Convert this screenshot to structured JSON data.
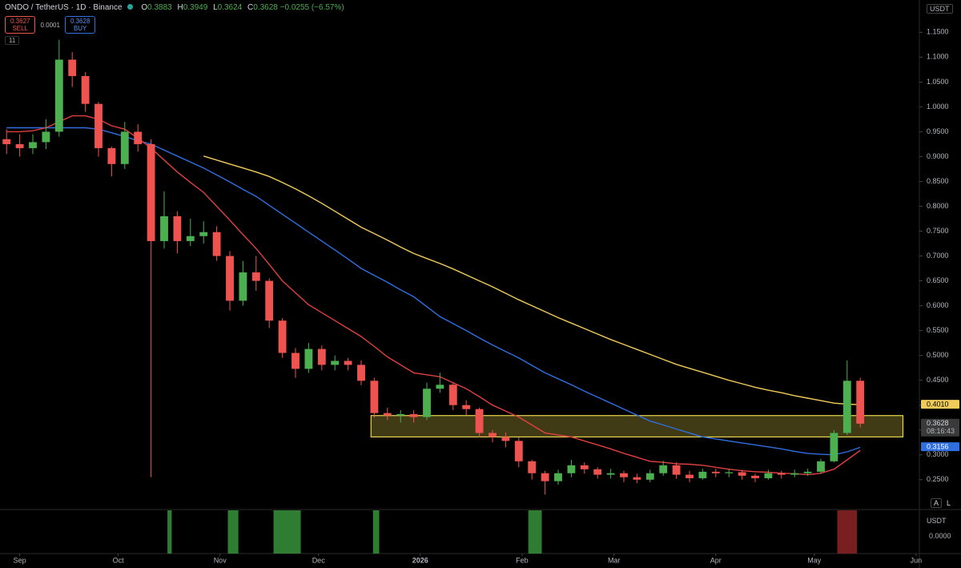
{
  "header": {
    "symbol": "ONDO / TetherUS · 1D · Binance",
    "ohlc": [
      {
        "k": "O",
        "v": "0.3883"
      },
      {
        "k": "H",
        "v": "0.3949"
      },
      {
        "k": "L",
        "v": "0.3624"
      },
      {
        "k": "C",
        "v": "0.3628"
      }
    ],
    "change": "−0.0255 (−6.57%)",
    "sell": {
      "price": "0.3627",
      "label": "SELL"
    },
    "spread": "0.0001",
    "buy": {
      "price": "0.3628",
      "label": "BUY"
    },
    "indicators": "11",
    "currency": "USDT",
    "lower_currency": "USDT",
    "lower_value": "0.0000",
    "btn_a": "A",
    "btn_l": "L"
  },
  "chart_data": {
    "type": "candlestick",
    "x": [
      -4,
      0,
      4,
      8,
      12,
      16,
      20,
      24,
      28,
      32,
      36,
      40,
      44,
      48,
      52,
      56,
      60,
      64,
      68,
      72,
      76,
      80,
      84,
      88,
      92,
      96,
      100,
      104,
      108,
      112,
      116,
      120,
      124,
      128,
      132,
      136,
      140,
      144,
      148,
      152,
      156,
      160,
      164,
      168,
      172,
      176,
      180,
      184,
      188,
      192,
      196,
      200,
      204,
      208,
      212,
      216,
      220,
      224,
      228,
      232,
      236,
      240,
      244,
      248,
      252,
      256
    ],
    "open": [
      0.935,
      0.925,
      0.917,
      0.929,
      0.95,
      1.095,
      1.062,
      1.006,
      0.917,
      0.885,
      0.95,
      0.925,
      0.73,
      0.78,
      0.73,
      0.74,
      0.748,
      0.7,
      0.61,
      0.667,
      0.65,
      0.57,
      0.505,
      0.473,
      0.513,
      0.481,
      0.489,
      0.481,
      0.449,
      0.384,
      0.379,
      0.382,
      0.376,
      0.433,
      0.441,
      0.4,
      0.392,
      0.344,
      0.336,
      0.328,
      0.287,
      0.263,
      0.247,
      0.263,
      0.279,
      0.271,
      0.26,
      0.263,
      0.255,
      0.25,
      0.263,
      0.279,
      0.26,
      0.253,
      0.266,
      0.263,
      0.265,
      0.258,
      0.253,
      0.263,
      0.26,
      0.263,
      0.266,
      0.287,
      0.344,
      0.449
    ],
    "high": [
      0.955,
      0.945,
      0.945,
      0.975,
      1.135,
      1.11,
      1.07,
      1.01,
      0.92,
      0.97,
      0.965,
      0.935,
      0.83,
      0.79,
      0.775,
      0.77,
      0.76,
      0.71,
      0.69,
      0.7,
      0.655,
      0.575,
      0.515,
      0.525,
      0.52,
      0.5,
      0.495,
      0.49,
      0.455,
      0.395,
      0.39,
      0.39,
      0.445,
      0.465,
      0.445,
      0.41,
      0.395,
      0.35,
      0.345,
      0.335,
      0.29,
      0.268,
      0.27,
      0.29,
      0.285,
      0.275,
      0.272,
      0.268,
      0.262,
      0.27,
      0.288,
      0.285,
      0.268,
      0.272,
      0.272,
      0.272,
      0.27,
      0.262,
      0.27,
      0.268,
      0.27,
      0.272,
      0.292,
      0.35,
      0.49,
      0.455
    ],
    "low": [
      0.905,
      0.9,
      0.905,
      0.915,
      0.94,
      1.04,
      0.99,
      0.9,
      0.86,
      0.875,
      0.91,
      0.255,
      0.715,
      0.705,
      0.72,
      0.725,
      0.69,
      0.59,
      0.6,
      0.63,
      0.555,
      0.495,
      0.455,
      0.465,
      0.47,
      0.47,
      0.47,
      0.44,
      0.375,
      0.37,
      0.365,
      0.365,
      0.37,
      0.425,
      0.39,
      0.38,
      0.335,
      0.325,
      0.315,
      0.275,
      0.25,
      0.22,
      0.24,
      0.255,
      0.262,
      0.252,
      0.252,
      0.245,
      0.243,
      0.245,
      0.258,
      0.252,
      0.245,
      0.25,
      0.255,
      0.255,
      0.25,
      0.245,
      0.25,
      0.252,
      0.255,
      0.258,
      0.262,
      0.285,
      0.34,
      0.355
    ],
    "close": [
      0.925,
      0.917,
      0.929,
      0.95,
      1.095,
      1.062,
      1.006,
      0.917,
      0.885,
      0.95,
      0.925,
      0.73,
      0.78,
      0.73,
      0.74,
      0.748,
      0.7,
      0.61,
      0.667,
      0.65,
      0.57,
      0.505,
      0.473,
      0.513,
      0.481,
      0.489,
      0.481,
      0.449,
      0.384,
      0.379,
      0.382,
      0.376,
      0.433,
      0.441,
      0.4,
      0.392,
      0.344,
      0.336,
      0.328,
      0.287,
      0.263,
      0.247,
      0.263,
      0.279,
      0.271,
      0.26,
      0.263,
      0.255,
      0.25,
      0.263,
      0.279,
      0.26,
      0.253,
      0.266,
      0.263,
      0.265,
      0.258,
      0.253,
      0.263,
      0.26,
      0.263,
      0.266,
      0.287,
      0.344,
      0.449,
      0.3628
    ],
    "up_color": "#4caf50",
    "down_color": "#ef5350",
    "series": [
      {
        "color": "#f0cc5a",
        "values": [
          null,
          null,
          null,
          null,
          null,
          null,
          null,
          null,
          null,
          null,
          null,
          null,
          null,
          null,
          null,
          0.901,
          0.893,
          0.885,
          0.877,
          0.869,
          0.86,
          0.848,
          0.835,
          0.821,
          0.806,
          0.79,
          0.774,
          0.758,
          0.745,
          0.732,
          0.718,
          0.705,
          0.695,
          0.685,
          0.674,
          0.662,
          0.65,
          0.638,
          0.625,
          0.612,
          0.6,
          0.588,
          0.576,
          0.565,
          0.554,
          0.543,
          0.532,
          0.522,
          0.512,
          0.502,
          0.492,
          0.482,
          0.474,
          0.466,
          0.458,
          0.45,
          0.443,
          0.436,
          0.43,
          0.425,
          0.419,
          0.414,
          0.409,
          0.404,
          0.402,
          0.401
        ]
      },
      {
        "color": "#2f6fe0",
        "values": [
          0.958,
          0.958,
          0.958,
          0.958,
          0.958,
          0.958,
          0.958,
          0.955,
          0.948,
          0.94,
          0.932,
          0.925,
          0.913,
          0.901,
          0.889,
          0.877,
          0.863,
          0.849,
          0.834,
          0.82,
          0.802,
          0.784,
          0.766,
          0.748,
          0.73,
          0.712,
          0.694,
          0.675,
          0.661,
          0.647,
          0.632,
          0.618,
          0.598,
          0.578,
          0.564,
          0.55,
          0.535,
          0.521,
          0.508,
          0.495,
          0.48,
          0.465,
          0.453,
          0.441,
          0.428,
          0.416,
          0.404,
          0.392,
          0.38,
          0.368,
          0.36,
          0.352,
          0.344,
          0.336,
          0.332,
          0.328,
          0.324,
          0.32,
          0.316,
          0.312,
          0.307,
          0.303,
          0.301,
          0.3,
          0.306,
          0.315
        ]
      },
      {
        "color": "#e04040",
        "values": [
          0.95,
          0.95,
          0.952,
          0.958,
          0.97,
          0.982,
          0.982,
          0.975,
          0.962,
          0.955,
          0.937,
          0.917,
          0.893,
          0.869,
          0.848,
          0.828,
          0.8,
          0.772,
          0.743,
          0.715,
          0.683,
          0.65,
          0.626,
          0.602,
          0.586,
          0.57,
          0.554,
          0.538,
          0.518,
          0.497,
          0.481,
          0.465,
          0.461,
          0.457,
          0.445,
          0.433,
          0.417,
          0.4,
          0.388,
          0.376,
          0.36,
          0.344,
          0.34,
          0.336,
          0.328,
          0.32,
          0.312,
          0.303,
          0.295,
          0.287,
          0.285,
          0.282,
          0.281,
          0.279,
          0.275,
          0.271,
          0.268,
          0.266,
          0.265,
          0.263,
          0.262,
          0.26,
          0.263,
          0.271,
          0.29,
          0.309
        ]
      }
    ],
    "zone": {
      "from": 0.336,
      "to": 0.379,
      "start": 107,
      "end": 269,
      "color": "#e8d44d"
    },
    "price_tags": [
      {
        "value": 0.401,
        "label": "0.4010",
        "color": "#f0cc5a"
      },
      {
        "value": 0.3628,
        "label": "0.3628",
        "countdown": "08:16:43",
        "color": "#3a3a3a"
      },
      {
        "value": 0.3156,
        "label": "0.3156",
        "color": "#2f6fe0"
      }
    ],
    "signals": [
      {
        "start": 45,
        "end": 46.3,
        "color": "#2e7d32"
      },
      {
        "start": 63.4,
        "end": 66.6,
        "color": "#2e7d32"
      },
      {
        "start": 77.3,
        "end": 85.6,
        "color": "#2e7d32"
      },
      {
        "start": 107.6,
        "end": 109.5,
        "color": "#2e7d32"
      },
      {
        "start": 154.9,
        "end": 159,
        "color": "#2e7d32"
      },
      {
        "start": 249,
        "end": 255,
        "color": "#7a1f1f"
      }
    ],
    "xlim": [
      -6,
      274
    ],
    "ylim": [
      0.19,
      1.215
    ],
    "xticks": [
      {
        "value": 0,
        "label": "Sep"
      },
      {
        "value": 30,
        "label": "Oct"
      },
      {
        "value": 61,
        "label": "Nov"
      },
      {
        "value": 91,
        "label": "Dec"
      },
      {
        "value": 122,
        "label": "2026"
      },
      {
        "value": 153,
        "label": "Feb"
      },
      {
        "value": 181,
        "label": "Mar"
      },
      {
        "value": 212,
        "label": "Apr"
      },
      {
        "value": 242,
        "label": "May"
      },
      {
        "value": 273,
        "label": "Jun"
      }
    ],
    "yticks": [
      {
        "value": 0.25,
        "label": "0.2500"
      },
      {
        "value": 0.3,
        "label": "0.3000"
      },
      {
        "value": 0.35,
        "label": "0.3500"
      },
      {
        "value": 0.4,
        "label": "0.4000"
      },
      {
        "value": 0.45,
        "label": "0.4500"
      },
      {
        "value": 0.5,
        "label": "0.5000"
      },
      {
        "value": 0.55,
        "label": "0.5500"
      },
      {
        "value": 0.6,
        "label": "0.6000"
      },
      {
        "value": 0.65,
        "label": "0.6500"
      },
      {
        "value": 0.7,
        "label": "0.7000"
      },
      {
        "value": 0.75,
        "label": "0.7500"
      },
      {
        "value": 0.8,
        "label": "0.8000"
      },
      {
        "value": 0.85,
        "label": "0.8500"
      },
      {
        "value": 0.9,
        "label": "0.9000"
      },
      {
        "value": 0.95,
        "label": "0.9500"
      },
      {
        "value": 1.0,
        "label": "1.0000"
      },
      {
        "value": 1.05,
        "label": "1.0500"
      },
      {
        "value": 1.1,
        "label": "1.1000"
      },
      {
        "value": 1.15,
        "label": "1.1500"
      }
    ],
    "grid": false
  }
}
